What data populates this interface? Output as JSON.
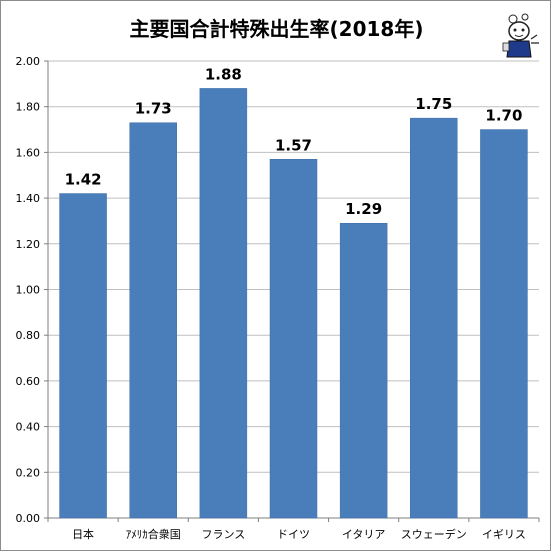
{
  "chart_data": {
    "type": "bar",
    "title": "主要国合計特殊出生率(2018年)",
    "categories": [
      "日本",
      "ｱﾒﾘｶ合衆国",
      "フランス",
      "ドイツ",
      "イタリア",
      "スウェーデン",
      "イギリス"
    ],
    "values": [
      1.42,
      1.73,
      1.88,
      1.57,
      1.29,
      1.75,
      1.7
    ],
    "data_labels": [
      "1.42",
      "1.73",
      "1.88",
      "1.57",
      "1.29",
      "1.75",
      "1.70"
    ],
    "y_ticks": [
      "0.00",
      "0.20",
      "0.40",
      "0.60",
      "0.80",
      "1.00",
      "1.20",
      "1.40",
      "1.60",
      "1.80",
      "2.00"
    ],
    "xlabel": "",
    "ylabel": "",
    "ylim": [
      0,
      2.0
    ],
    "grid": true,
    "legend": "none",
    "colors": {
      "bar": "#4a7ebb",
      "bar_edge": "#3f6fa6",
      "grid": "#bfbfbf",
      "axis": "#7f7f7f"
    }
  },
  "icons": {
    "mascot": "mascot-icon"
  }
}
